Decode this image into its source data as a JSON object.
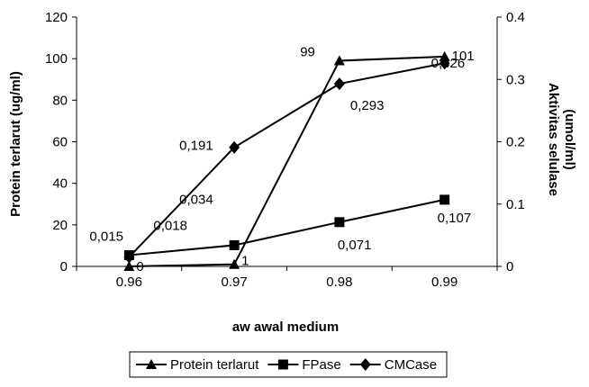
{
  "chart_data": {
    "type": "line",
    "x": [
      0.96,
      0.97,
      0.98,
      0.99
    ],
    "x_tick_labels": [
      "0.96",
      "0.97",
      "0.98",
      "0.99"
    ],
    "xlabel": "aw awal medium",
    "ylabel_left": "Protein terlarut (ug/ml)",
    "ylabel_right_line1": "Aktivitas selulase",
    "ylabel_right_line2": "(umol/ml)",
    "ylim_left": [
      0,
      120
    ],
    "ylim_right": [
      0,
      0.4
    ],
    "yticks_left": [
      "0",
      "20",
      "40",
      "60",
      "80",
      "100",
      "120"
    ],
    "yticks_right": [
      "0",
      "0.1",
      "0.2",
      "0.3",
      "0.4"
    ],
    "grid": false,
    "legend_position": "bottom",
    "series": [
      {
        "name": "Protein terlarut",
        "axis": "left",
        "marker": "triangle",
        "values": [
          0,
          1,
          99,
          101
        ],
        "labels": [
          "0",
          "1",
          "99",
          "101"
        ]
      },
      {
        "name": "FPase",
        "axis": "right",
        "marker": "square",
        "values": [
          0.018,
          0.034,
          0.071,
          0.107
        ],
        "labels": [
          "0,018",
          "0,034",
          "0,071",
          "0,107"
        ]
      },
      {
        "name": "CMCase",
        "axis": "right",
        "marker": "diamond",
        "values": [
          0.015,
          0.191,
          0.293,
          0.326
        ],
        "labels": [
          "0,015",
          "0,191",
          "0,293",
          "0,326"
        ]
      }
    ]
  }
}
